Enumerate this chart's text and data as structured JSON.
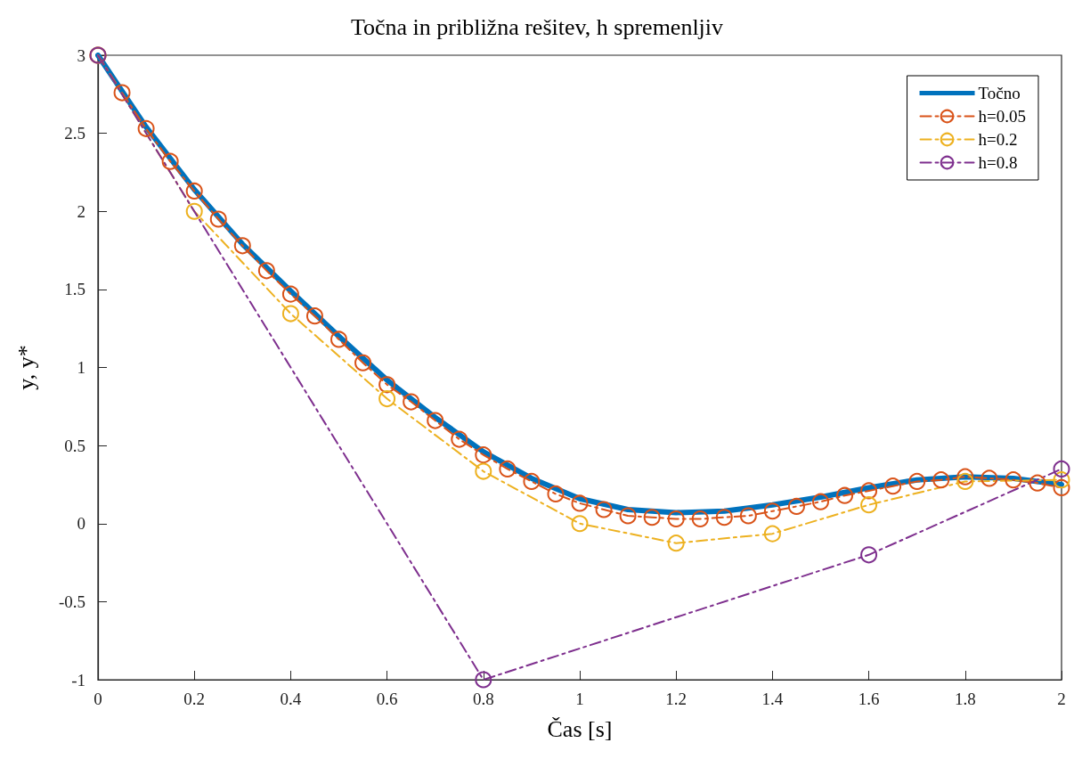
{
  "chart_data": {
    "type": "line",
    "title": "Točna in približna rešitev, h spremenljiv",
    "xlabel": "Čas [s]",
    "ylabel": "y, y*",
    "xlim": [
      0,
      2
    ],
    "xticks": [
      0,
      0.2,
      0.4,
      0.6,
      0.8,
      1,
      1.2,
      1.4,
      1.6,
      1.8,
      2
    ],
    "ylim": [
      -1,
      3
    ],
    "yticks": [
      -1,
      -0.5,
      0,
      0.5,
      1,
      1.5,
      2,
      2.5,
      3
    ],
    "grid": false,
    "legend": "top right",
    "series": [
      {
        "name": "Točno",
        "color": "#0072bd",
        "marker": "none",
        "line_style": "solid",
        "x": [
          0,
          0.1,
          0.2,
          0.3,
          0.4,
          0.5,
          0.6,
          0.7,
          0.8,
          0.9,
          1,
          1.1,
          1.2,
          1.3,
          1.4,
          1.5,
          1.6,
          1.7,
          1.8,
          1.9,
          2
        ],
        "values": [
          3,
          2.54,
          2.14,
          1.79,
          1.49,
          1.2,
          0.92,
          0.68,
          0.46,
          0.29,
          0.16,
          0.09,
          0.07,
          0.08,
          0.12,
          0.17,
          0.23,
          0.28,
          0.3,
          0.29,
          0.25
        ]
      },
      {
        "name": "h=0.05",
        "color": "#d95319",
        "marker": "circle",
        "line_style": "dashed",
        "x": [
          0,
          0.05,
          0.1,
          0.15,
          0.2,
          0.25,
          0.3,
          0.35,
          0.4,
          0.45,
          0.5,
          0.55,
          0.6,
          0.65,
          0.7,
          0.75,
          0.8,
          0.85,
          0.9,
          0.95,
          1,
          1.05,
          1.1,
          1.15,
          1.2,
          1.25,
          1.3,
          1.35,
          1.4,
          1.45,
          1.5,
          1.55,
          1.6,
          1.65,
          1.7,
          1.75,
          1.8,
          1.85,
          1.9,
          1.95,
          2
        ],
        "values": [
          3,
          2.76,
          2.53,
          2.32,
          2.13,
          1.95,
          1.78,
          1.62,
          1.47,
          1.33,
          1.18,
          1.03,
          0.89,
          0.78,
          0.66,
          0.54,
          0.44,
          0.35,
          0.27,
          0.19,
          0.13,
          0.09,
          0.05,
          0.04,
          0.03,
          0.03,
          0.04,
          0.05,
          0.08,
          0.11,
          0.14,
          0.18,
          0.21,
          0.24,
          0.27,
          0.28,
          0.3,
          0.29,
          0.28,
          0.26,
          0.23
        ]
      },
      {
        "name": "h=0.2",
        "color": "#edb120",
        "marker": "circle",
        "line_style": "dashed",
        "x": [
          0,
          0.2,
          0.4,
          0.6,
          0.8,
          1,
          1.2,
          1.4,
          1.6,
          1.8,
          2
        ],
        "values": [
          3,
          2,
          1.345,
          0.8,
          0.335,
          0,
          -0.125,
          -0.065,
          0.12,
          0.27,
          0.28
        ]
      },
      {
        "name": "h=0.8",
        "color": "#7e2f8e",
        "marker": "circle",
        "line_style": "dashed",
        "x": [
          0,
          0.8,
          1.6,
          2
        ],
        "values": [
          3,
          -1,
          -0.2,
          0.35
        ]
      }
    ]
  }
}
